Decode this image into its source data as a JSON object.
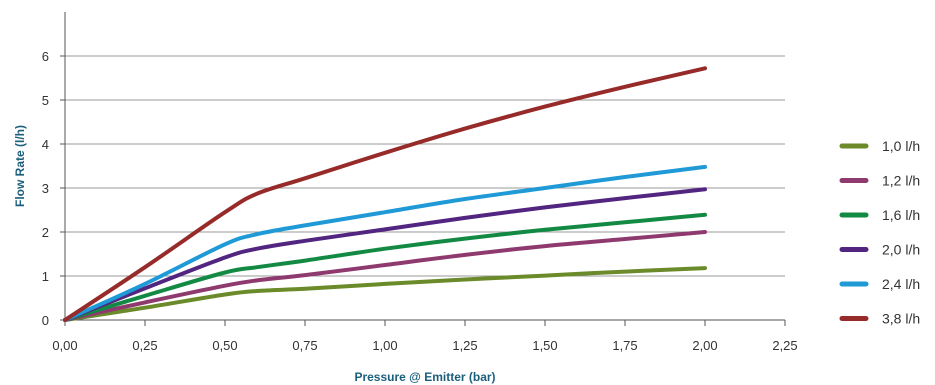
{
  "chart_data": {
    "type": "line",
    "title": "",
    "xlabel": "Pressure @ Emitter (bar)",
    "ylabel": "Flow Rate (l/h)",
    "xlim": [
      0,
      2.25
    ],
    "ylim": [
      0,
      6
    ],
    "x_ticks": [
      "0,00",
      "0,25",
      "0,50",
      "0,75",
      "1,00",
      "1,25",
      "1,50",
      "1,75",
      "2,00",
      "2,25"
    ],
    "y_ticks": [
      "0",
      "1",
      "2",
      "3",
      "4",
      "5",
      "6"
    ],
    "grid": "horizontal",
    "legend_position": "right",
    "series": [
      {
        "name": "1,0 l/h",
        "color": "#6b8a2a",
        "x": [
          0,
          0.25,
          0.5,
          0.6,
          0.75,
          1.0,
          1.25,
          1.5,
          1.75,
          2.0
        ],
        "y": [
          0,
          0.28,
          0.58,
          0.66,
          0.71,
          0.82,
          0.92,
          1.01,
          1.1,
          1.18
        ]
      },
      {
        "name": "1,2 l/h",
        "color": "#8e3a6e",
        "x": [
          0,
          0.25,
          0.5,
          0.6,
          0.75,
          1.0,
          1.25,
          1.5,
          1.75,
          2.0
        ],
        "y": [
          0,
          0.4,
          0.78,
          0.9,
          1.02,
          1.25,
          1.48,
          1.68,
          1.84,
          2.0
        ]
      },
      {
        "name": "1,6 l/h",
        "color": "#138a43",
        "x": [
          0,
          0.25,
          0.5,
          0.6,
          0.75,
          1.0,
          1.25,
          1.5,
          1.75,
          2.0
        ],
        "y": [
          0,
          0.55,
          1.08,
          1.2,
          1.35,
          1.62,
          1.85,
          2.05,
          2.22,
          2.39
        ]
      },
      {
        "name": "2,0 l/h",
        "color": "#512580",
        "x": [
          0,
          0.25,
          0.5,
          0.6,
          0.75,
          1.0,
          1.25,
          1.5,
          1.75,
          2.0
        ],
        "y": [
          0,
          0.72,
          1.42,
          1.62,
          1.8,
          2.06,
          2.32,
          2.56,
          2.77,
          2.97
        ]
      },
      {
        "name": "2,4 l/h",
        "color": "#1f9ad6",
        "x": [
          0,
          0.25,
          0.5,
          0.6,
          0.75,
          1.0,
          1.25,
          1.5,
          1.75,
          2.0
        ],
        "y": [
          0,
          0.82,
          1.72,
          1.95,
          2.15,
          2.45,
          2.75,
          3.0,
          3.25,
          3.48
        ]
      },
      {
        "name": "3,8 l/h",
        "color": "#962b2a",
        "x": [
          0,
          0.25,
          0.5,
          0.6,
          0.75,
          1.0,
          1.25,
          1.5,
          1.75,
          2.0
        ],
        "y": [
          0,
          1.2,
          2.45,
          2.87,
          3.22,
          3.8,
          4.35,
          4.85,
          5.3,
          5.72
        ]
      }
    ]
  }
}
